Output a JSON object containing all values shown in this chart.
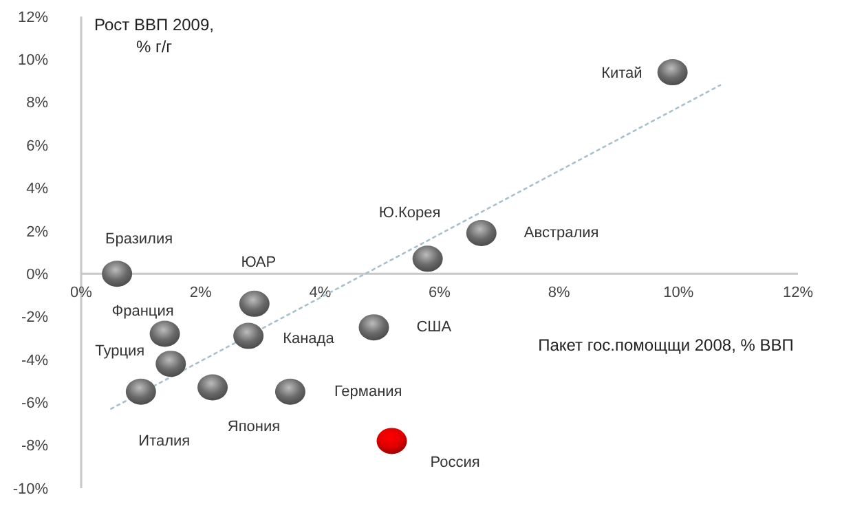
{
  "chart_data": {
    "type": "scatter",
    "ylabel": "Рост ВВП 2009,\n% г/г",
    "xlabel": "Пакет гос.помощщи 2008, % ВВП",
    "xlim": [
      0,
      12
    ],
    "ylim": [
      -10,
      12
    ],
    "xticks": [
      {
        "value": 0,
        "label": "0%"
      },
      {
        "value": 2,
        "label": "2%"
      },
      {
        "value": 4,
        "label": "4%"
      },
      {
        "value": 6,
        "label": "6%"
      },
      {
        "value": 8,
        "label": "8%"
      },
      {
        "value": 10,
        "label": "10%"
      },
      {
        "value": 12,
        "label": "12%"
      }
    ],
    "yticks": [
      {
        "value": -10,
        "label": "-10%"
      },
      {
        "value": -8,
        "label": "-8%"
      },
      {
        "value": -6,
        "label": "-6%"
      },
      {
        "value": -4,
        "label": "-4%"
      },
      {
        "value": -2,
        "label": "-2%"
      },
      {
        "value": 0,
        "label": "0%"
      },
      {
        "value": 2,
        "label": "2%"
      },
      {
        "value": 4,
        "label": "4%"
      },
      {
        "value": 6,
        "label": "6%"
      },
      {
        "value": 8,
        "label": "8%"
      },
      {
        "value": 10,
        "label": "10%"
      },
      {
        "value": 12,
        "label": "12%"
      }
    ],
    "grid": false,
    "series": [
      {
        "x": [
          9.9,
          5.8,
          6.7,
          0.6,
          2.9,
          1.4,
          2.8,
          4.9,
          1.5,
          1.0,
          2.2,
          3.5,
          5.2
        ],
        "values": [
          9.4,
          0.7,
          1.9,
          0,
          -1.4,
          -2.8,
          -2.9,
          -2.5,
          -4.2,
          -5.5,
          -5.3,
          -5.5,
          -7.8
        ],
        "colors": [
          "#6a6a6a",
          "#6a6a6a",
          "#6a6a6a",
          "#6a6a6a",
          "#6a6a6a",
          "#6a6a6a",
          "#6a6a6a",
          "#6a6a6a",
          "#6a6a6a",
          "#6a6a6a",
          "#6a6a6a",
          "#6a6a6a",
          "#e00000"
        ],
        "marker": "circle"
      },
      {
        "type": "line",
        "x": [
          0.5,
          10.7
        ],
        "values": [
          -6.3,
          8.8
        ],
        "color": "#a8c0cc",
        "line_style": "dotted",
        "marker": "none"
      }
    ],
    "annotations": [
      {
        "text": "Китай",
        "x": 9.9,
        "y": 9.4
      },
      {
        "text": "Ю.Корея",
        "x": 5.8,
        "y": 0.7
      },
      {
        "text": "Австралия",
        "x": 6.7,
        "y": 1.9
      },
      {
        "text": "Бразилия",
        "x": 0.6,
        "y": 0
      },
      {
        "text": "ЮАР",
        "x": 2.9,
        "y": -1.4
      },
      {
        "text": "Франция",
        "x": 1.4,
        "y": -2.8
      },
      {
        "text": "Канада",
        "x": 2.8,
        "y": -2.9
      },
      {
        "text": "США",
        "x": 4.9,
        "y": -2.5
      },
      {
        "text": "Турция",
        "x": 1.5,
        "y": -4.2
      },
      {
        "text": "Италия",
        "x": 1.0,
        "y": -5.5
      },
      {
        "text": "Япония",
        "x": 2.2,
        "y": -5.3
      },
      {
        "text": "Германия",
        "x": 3.5,
        "y": -5.5
      },
      {
        "text": "Россия",
        "x": 5.2,
        "y": -7.8
      }
    ]
  }
}
